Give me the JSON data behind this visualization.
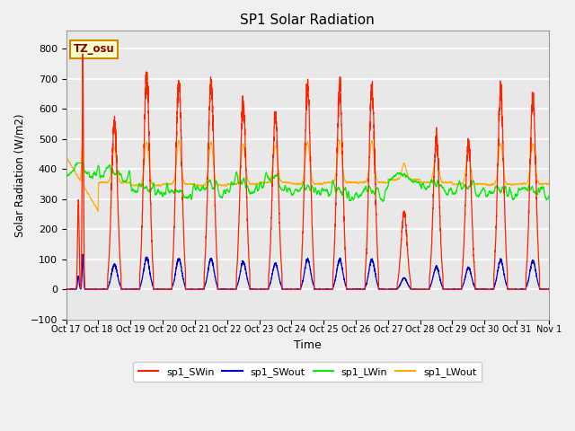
{
  "title": "SP1 Solar Radiation",
  "ylabel": "Solar Radiation (W/m2)",
  "xlabel": "Time",
  "ylim": [
    -100,
    860
  ],
  "yticks": [
    -100,
    0,
    100,
    200,
    300,
    400,
    500,
    600,
    700,
    800
  ],
  "xtick_labels": [
    "Oct 17",
    "Oct 18",
    "Oct 19",
    "Oct 20",
    "Oct 21",
    "Oct 22",
    "Oct 23",
    "Oct 24",
    "Oct 25",
    "Oct 26",
    "Oct 27",
    "Oct 28",
    "Oct 29",
    "Oct 30",
    "Oct 31",
    "Nov 1"
  ],
  "annotation_text": "TZ_osu",
  "annotation_color": "#8b0000",
  "annotation_bg": "#ffffcc",
  "annotation_border": "#cc8800",
  "bg_inner": "#e8e8e8",
  "bg_outer": "#f0f0f0",
  "grid_color": "#ffffff",
  "line_colors": {
    "SWin": "#ff2200",
    "SWout": "#0000cc",
    "LWin": "#00ee00",
    "LWout": "#ffaa00"
  },
  "legend_labels": [
    "sp1_SWin",
    "sp1_SWout",
    "sp1_LWin",
    "sp1_LWout"
  ],
  "n_days": 15,
  "points_per_day": 288,
  "sw_peaks": [
    760,
    555,
    700,
    690,
    690,
    620,
    580,
    670,
    670,
    670,
    255,
    505,
    490,
    660,
    640
  ]
}
